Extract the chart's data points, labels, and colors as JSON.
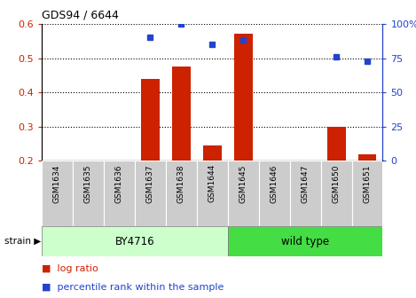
{
  "title": "GDS94 / 6644",
  "samples": [
    "GSM1634",
    "GSM1635",
    "GSM1636",
    "GSM1637",
    "GSM1638",
    "GSM1644",
    "GSM1645",
    "GSM1646",
    "GSM1647",
    "GSM1650",
    "GSM1651"
  ],
  "log_ratio": [
    0.0,
    0.0,
    0.0,
    0.44,
    0.475,
    0.245,
    0.57,
    0.0,
    0.0,
    0.3,
    0.22
  ],
  "percentile_rank": [
    null,
    null,
    null,
    90,
    100,
    85,
    88,
    null,
    null,
    76,
    73
  ],
  "bar_color": "#cc2200",
  "dot_color": "#2244cc",
  "ylim_left": [
    0.2,
    0.6
  ],
  "ylim_right": [
    0,
    100
  ],
  "yticks_left": [
    0.2,
    0.3,
    0.4,
    0.5,
    0.6
  ],
  "yticks_right": [
    0,
    25,
    50,
    75,
    100
  ],
  "ytick_labels_right": [
    "0",
    "25",
    "50",
    "75",
    "100%"
  ],
  "group1_label": "BY4716",
  "group1_indices": [
    0,
    1,
    2,
    3,
    4,
    5
  ],
  "group2_label": "wild type",
  "group2_indices": [
    6,
    7,
    8,
    9,
    10
  ],
  "group1_color_light": "#ccffcc",
  "group2_color_bright": "#44dd44",
  "tick_label_bg": "#cccccc",
  "strain_label": "strain",
  "legend_bar_label": "log ratio",
  "legend_dot_label": "percentile rank within the sample",
  "background_color": "#ffffff",
  "grid_color": "#000000",
  "bar_width": 0.6,
  "bar_bottom": 0.2
}
